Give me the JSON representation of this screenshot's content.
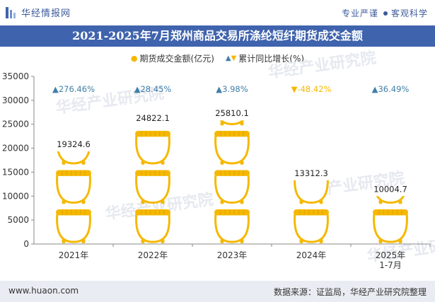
{
  "header": {
    "brand": "华经情报网",
    "slogan_left": "专业严谨",
    "slogan_right": "客观科学"
  },
  "title": "2021-2025年7月郑州商品交易所涤纶短纤期货成交金额",
  "legend": {
    "series1": "期货成交金额(亿元)",
    "series2": "累计同比增长(%)"
  },
  "footer": {
    "url": "www.huaon.com",
    "source": "数据来源：证监局，华经产业研究院整理"
  },
  "colors": {
    "pot": "#f5b800",
    "title_bg": "#3f63ad",
    "growth_up": "#3f7fa8",
    "growth_down": "#f5b800"
  },
  "chart_data": {
    "type": "bar",
    "categories": [
      "2021年",
      "2022年",
      "2023年",
      "2024年",
      "2025年\n1-7月"
    ],
    "series": [
      {
        "name": "期货成交金额(亿元)",
        "values": [
          19324.6,
          24822.1,
          25810.1,
          13312.3,
          10004.7
        ],
        "labels": [
          "19324.6",
          "24822.1",
          "25810.1",
          "13312.3",
          "10004.7"
        ]
      },
      {
        "name": "累计同比增长(%)",
        "values": [
          276.46,
          28.45,
          3.98,
          -48.42,
          36.49
        ],
        "labels": [
          "276.46%",
          "28.45%",
          "3.98%",
          "-48.42%",
          "36.49%"
        ]
      }
    ],
    "ylim": [
      0,
      35000
    ],
    "yticks": [
      "0",
      "5000",
      "10000",
      "15000",
      "20000",
      "25000",
      "30000",
      "35000"
    ],
    "ytick_values": [
      0,
      5000,
      10000,
      15000,
      20000,
      25000,
      30000,
      35000
    ],
    "watermark": "华经产业研究院",
    "watermark_url": "www.huaon.com"
  }
}
